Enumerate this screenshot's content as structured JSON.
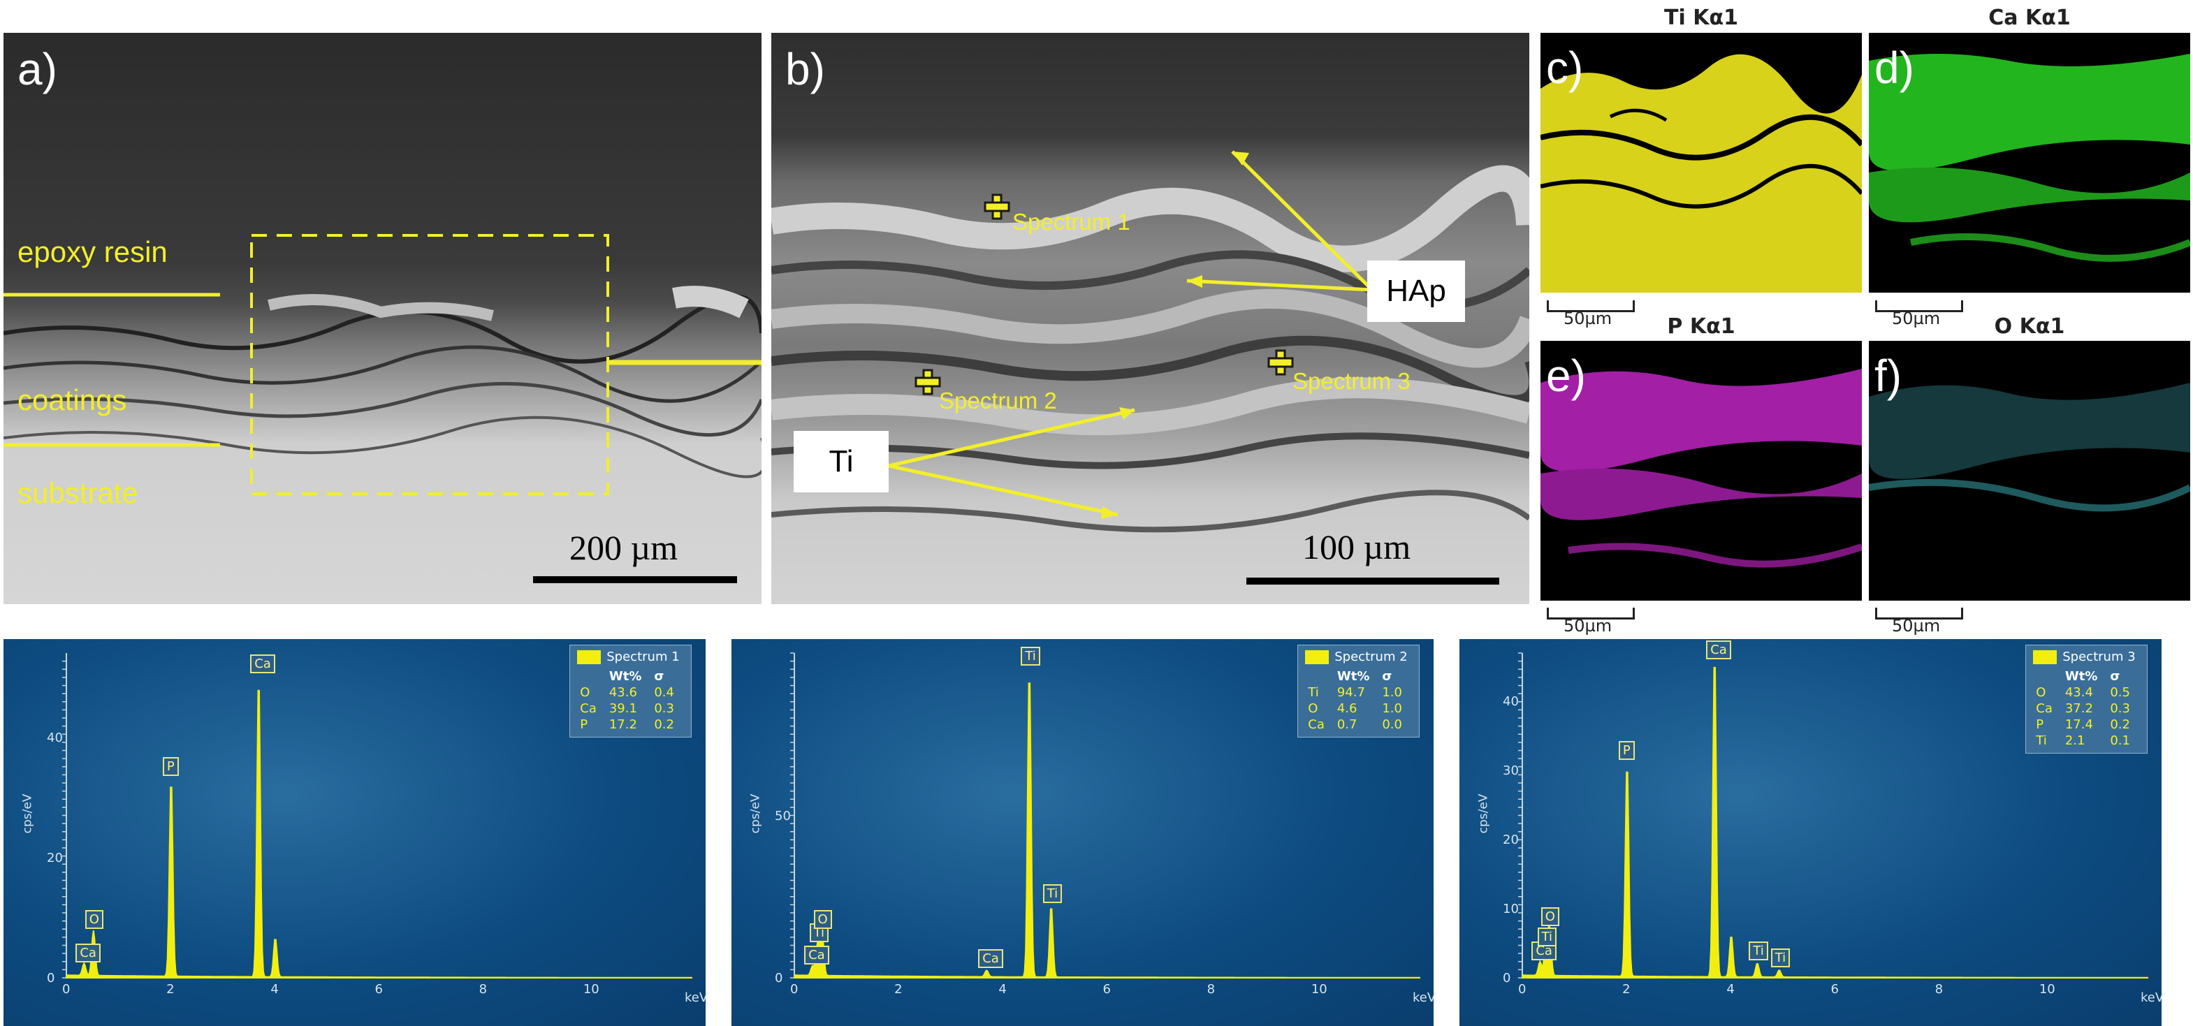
{
  "panels": {
    "a": {
      "label": "a)",
      "epoxy": "epoxy resin",
      "coatings": "coatings",
      "substrate": "substrate",
      "scale": "200 µm"
    },
    "b": {
      "label": "b)",
      "spectrum1": "Spectrum 1",
      "spectrum2": "Spectrum 2",
      "spectrum3": "Spectrum 3",
      "hap": "HAp",
      "ti": "Ti",
      "scale": "100 µm"
    },
    "maps": [
      {
        "label": "c)",
        "title": "Ti Kα1",
        "scale": "50µm",
        "color": "#d8d21a"
      },
      {
        "label": "d)",
        "title": "Ca Kα1",
        "scale": "50µm",
        "color": "#22b51e"
      },
      {
        "label": "e)",
        "title": "P Kα1",
        "scale": "50µm",
        "color": "#a21fa6"
      },
      {
        "label": "f)",
        "title": "O Kα1",
        "scale": "50µm",
        "color": "#2f8c93"
      }
    ]
  },
  "chart_data": [
    {
      "type": "line",
      "legend": {
        "name": "Spectrum 1",
        "header": [
          "Wt%",
          "σ"
        ],
        "rows": [
          [
            "O",
            "43.6",
            "0.4"
          ],
          [
            "Ca",
            "39.1",
            "0.3"
          ],
          [
            "P",
            "17.2",
            "0.2"
          ]
        ]
      },
      "xlabel": "keV",
      "ylabel": "cps/eV",
      "xlim": [
        0,
        12
      ],
      "ylim": [
        0,
        54
      ],
      "xticks": [
        "0",
        "2",
        "4",
        "6",
        "8",
        "10"
      ],
      "yticks": [
        "0",
        "20",
        "40"
      ],
      "peaks": [
        {
          "x": 0.34,
          "y": 2,
          "label": "Ca"
        },
        {
          "x": 0.52,
          "y": 7.5,
          "label": "O"
        },
        {
          "x": 2.01,
          "y": 33,
          "label": "P"
        },
        {
          "x": 3.69,
          "y": 50,
          "label": "Ca"
        },
        {
          "x": 4.01,
          "y": 6.5,
          "label": ""
        }
      ]
    },
    {
      "type": "line",
      "legend": {
        "name": "Spectrum 2",
        "header": [
          "Wt%",
          "σ"
        ],
        "rows": [
          [
            "Ti",
            "94.7",
            "1.0"
          ],
          [
            "O",
            "4.6",
            "1.0"
          ],
          [
            "Ca",
            "0.7",
            "0.0"
          ]
        ]
      },
      "xlabel": "keV",
      "ylabel": "cps/eV",
      "xlim": [
        0,
        12
      ],
      "ylim": [
        0,
        100
      ],
      "xticks": [
        "0",
        "2",
        "4",
        "6",
        "8",
        "10"
      ],
      "yticks": [
        "0",
        "50"
      ],
      "peaks": [
        {
          "x": 0.35,
          "y": 3,
          "label": "Ca"
        },
        {
          "x": 0.45,
          "y": 10,
          "label": "Ti"
        },
        {
          "x": 0.53,
          "y": 14,
          "label": "O"
        },
        {
          "x": 3.69,
          "y": 2,
          "label": "Ca"
        },
        {
          "x": 4.51,
          "y": 95,
          "label": "Ti"
        },
        {
          "x": 4.93,
          "y": 22,
          "label": "Ti"
        }
      ]
    },
    {
      "type": "line",
      "legend": {
        "name": "Spectrum 3",
        "header": [
          "Wt%",
          "σ"
        ],
        "rows": [
          [
            "O",
            "43.4",
            "0.5"
          ],
          [
            "Ca",
            "37.2",
            "0.3"
          ],
          [
            "P",
            "17.4",
            "0.2"
          ],
          [
            "Ti",
            "2.1",
            "0.1"
          ]
        ]
      },
      "xlabel": "keV",
      "ylabel": "cps/eV",
      "xlim": [
        0,
        12
      ],
      "ylim": [
        0,
        47
      ],
      "xticks": [
        "0",
        "2",
        "4",
        "6",
        "8",
        "10"
      ],
      "yticks": [
        "0",
        "10",
        "20",
        "30",
        "40"
      ],
      "peaks": [
        {
          "x": 0.34,
          "y": 2,
          "label": "Ca"
        },
        {
          "x": 0.45,
          "y": 4,
          "label": "Ti"
        },
        {
          "x": 0.52,
          "y": 7,
          "label": "O"
        },
        {
          "x": 2.01,
          "y": 31,
          "label": "P"
        },
        {
          "x": 3.69,
          "y": 47,
          "label": "Ca"
        },
        {
          "x": 4.01,
          "y": 6,
          "label": ""
        },
        {
          "x": 4.51,
          "y": 2,
          "label": "Ti"
        },
        {
          "x": 4.93,
          "y": 1,
          "label": "Ti"
        }
      ]
    }
  ]
}
